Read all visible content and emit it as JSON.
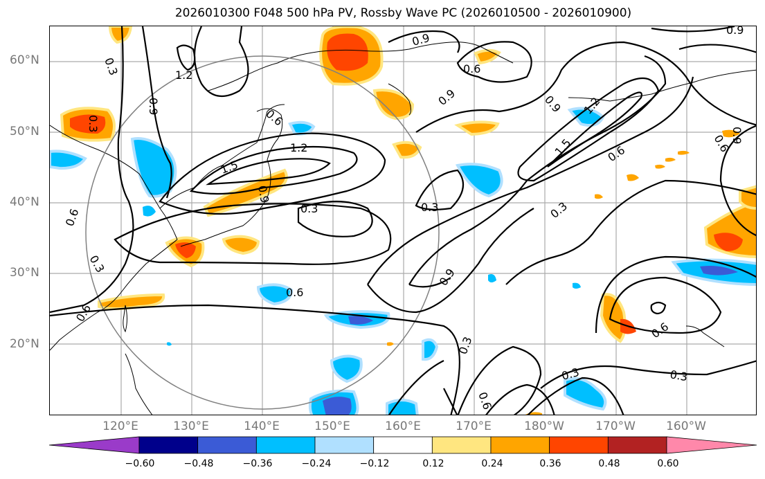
{
  "title": "2026010300 F048 500 hPa PV, Rossby Wave PC (2026010500 - 2026010900)",
  "chart_data": {
    "type": "contour-map",
    "field_shaded": "Rossby Wave PC",
    "field_contours": "500 hPa PV",
    "lat_ticks": [
      "60°N",
      "50°N",
      "40°N",
      "30°N",
      "20°N"
    ],
    "lon_ticks": [
      "120°E",
      "130°E",
      "140°E",
      "150°E",
      "160°E",
      "170°E",
      "180°W",
      "170°W",
      "160°W"
    ],
    "contour_labels": [
      "0.3",
      "0.6",
      "0.9",
      "1.2",
      "1.5"
    ],
    "colorbar": {
      "ticks": [
        "−0.60",
        "−0.48",
        "−0.36",
        "−0.24",
        "−0.12",
        "0.12",
        "0.24",
        "0.36",
        "0.48",
        "0.60"
      ],
      "colors": [
        "#9a3bc9",
        "#00008b",
        "#3b5bd6",
        "#00bfff",
        "#b0e0ff",
        "#ffffff",
        "#ffe680",
        "#ffa500",
        "#ff4500",
        "#b22222",
        "#ff88aa"
      ],
      "extend": "both"
    }
  }
}
